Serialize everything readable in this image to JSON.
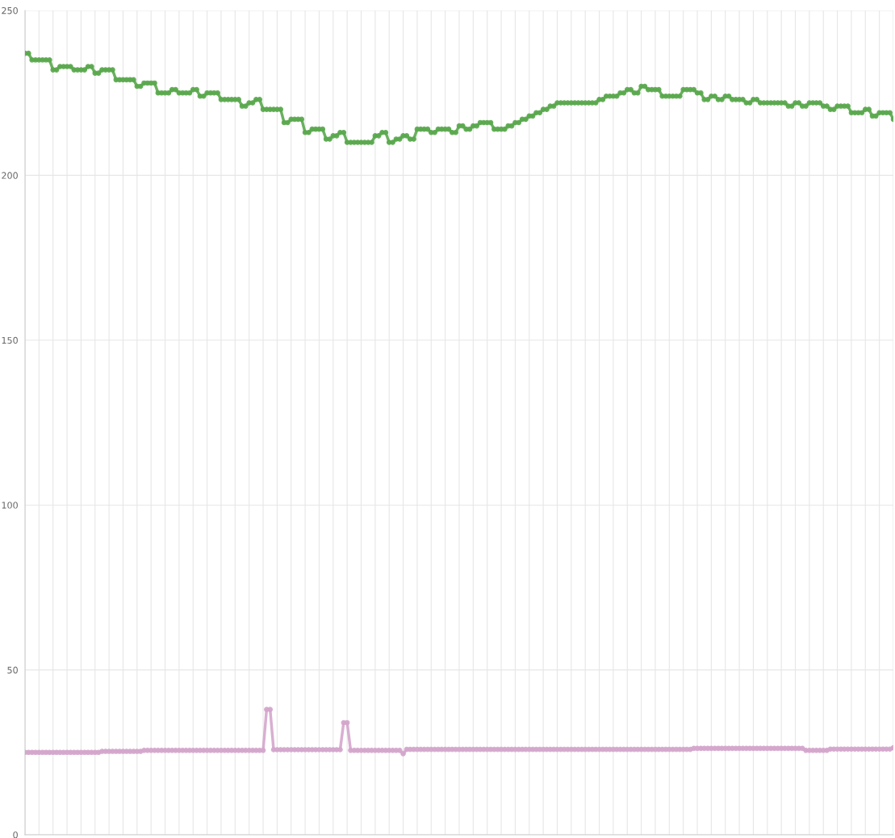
{
  "chart_data": {
    "type": "line",
    "categories": [
      null,
      null,
      null,
      null,
      null,
      null,
      null,
      null,
      null,
      null,
      null,
      null,
      null,
      null,
      null,
      null,
      null,
      null,
      null,
      null,
      null,
      null,
      null,
      null,
      null,
      null,
      null,
      null,
      null,
      null,
      null,
      null,
      null,
      null,
      null,
      null,
      null,
      null,
      null,
      null,
      null,
      null,
      null,
      null,
      null,
      null,
      null,
      null,
      null,
      null,
      null,
      null,
      null,
      null,
      null,
      null,
      null,
      null,
      null,
      null,
      null,
      null,
      null,
      null,
      null,
      null,
      null,
      null,
      null,
      null,
      null,
      null,
      null,
      null,
      null,
      null,
      null,
      null,
      null,
      null,
      null,
      null,
      null,
      null,
      null,
      null,
      null,
      null,
      null,
      null,
      null,
      null,
      null,
      null,
      null,
      null,
      null,
      null,
      null,
      null,
      null,
      null,
      null,
      null,
      null,
      null,
      null,
      null,
      null,
      null,
      null,
      null,
      null,
      null,
      null,
      null,
      null,
      null,
      null,
      null,
      null,
      null,
      null,
      null,
      null,
      null,
      null,
      null,
      null,
      null,
      null,
      null,
      null,
      null,
      null,
      null,
      null,
      null,
      null,
      null,
      null,
      null,
      null,
      null,
      null,
      null,
      null,
      null,
      null,
      null,
      null,
      null,
      null,
      null,
      null,
      null,
      null,
      null,
      null,
      null,
      null,
      null,
      null,
      null,
      null,
      null,
      null,
      null,
      null,
      null,
      null,
      null,
      null,
      null,
      null,
      null,
      null,
      null,
      null,
      null,
      null,
      null,
      null,
      null,
      null,
      null,
      null,
      null,
      null,
      null,
      null,
      null,
      null,
      null,
      null,
      null,
      null,
      null,
      null,
      null,
      null,
      null,
      null,
      null,
      null,
      null,
      null,
      null,
      null,
      null,
      null,
      null,
      null,
      null,
      null,
      null,
      null,
      null,
      null,
      null,
      null,
      null,
      null,
      null,
      null,
      null,
      null,
      null,
      null,
      null,
      null,
      null,
      null,
      null,
      null,
      null,
      null,
      null,
      null,
      null,
      null,
      null,
      null,
      null,
      null,
      null,
      null,
      null,
      null
    ],
    "series": [
      {
        "color": "#5ba84f",
        "values": [
          237,
          237,
          235,
          235,
          235,
          235,
          235,
          235,
          232,
          232,
          233,
          233,
          233,
          233,
          232,
          232,
          232,
          232,
          233,
          233,
          231,
          231,
          232,
          232,
          232,
          232,
          229,
          229,
          229,
          229,
          229,
          229,
          227,
          227,
          228,
          228,
          228,
          228,
          225,
          225,
          225,
          225,
          226,
          226,
          225,
          225,
          225,
          225,
          226,
          226,
          224,
          224,
          225,
          225,
          225,
          225,
          223,
          223,
          223,
          223,
          223,
          223,
          221,
          221,
          222,
          222,
          223,
          223,
          220,
          220,
          220,
          220,
          220,
          220,
          216,
          216,
          217,
          217,
          217,
          217,
          213,
          213,
          214,
          214,
          214,
          214,
          211,
          211,
          212,
          212,
          213,
          213,
          210,
          210,
          210,
          210,
          210,
          210,
          210,
          210,
          212,
          212,
          213,
          213,
          210,
          210,
          211,
          211,
          212,
          212,
          211,
          211,
          214,
          214,
          214,
          214,
          213,
          213,
          214,
          214,
          214,
          214,
          213,
          213,
          215,
          215,
          214,
          214,
          215,
          215,
          216,
          216,
          216,
          216,
          214,
          214,
          214,
          214,
          215,
          215,
          216,
          216,
          217,
          217,
          218,
          218,
          219,
          219,
          220,
          220,
          221,
          221,
          222,
          222,
          222,
          222,
          222,
          222,
          222,
          222,
          222,
          222,
          222,
          222,
          223,
          223,
          224,
          224,
          224,
          224,
          225,
          225,
          226,
          226,
          225,
          225,
          227,
          227,
          226,
          226,
          226,
          226,
          224,
          224,
          224,
          224,
          224,
          224,
          226,
          226,
          226,
          226,
          225,
          225,
          223,
          223,
          224,
          224,
          223,
          223,
          224,
          224,
          223,
          223,
          223,
          223,
          222,
          222,
          223,
          223,
          222,
          222,
          222,
          222,
          222,
          222,
          222,
          222,
          221,
          221,
          222,
          222,
          221,
          221,
          222,
          222,
          222,
          222,
          221,
          221,
          220,
          220,
          221,
          221,
          221,
          221,
          219,
          219,
          219,
          219,
          220,
          220,
          218,
          218,
          219,
          219,
          219,
          219,
          217
        ]
      },
      {
        "color": "#d4a6cc",
        "values": [
          25.0,
          25.0,
          25.0,
          25.0,
          25.0,
          25.0,
          25.0,
          25.0,
          25.0,
          25.0,
          25.0,
          25.0,
          25.0,
          25.0,
          25.0,
          25.0,
          25.0,
          25.0,
          25.0,
          25.0,
          25.0,
          25.0,
          25.3,
          25.3,
          25.3,
          25.3,
          25.3,
          25.3,
          25.3,
          25.3,
          25.3,
          25.3,
          25.3,
          25.3,
          25.6,
          25.6,
          25.6,
          25.6,
          25.6,
          25.6,
          25.6,
          25.6,
          25.6,
          25.6,
          25.6,
          25.6,
          25.6,
          25.6,
          25.6,
          25.6,
          25.6,
          25.6,
          25.6,
          25.6,
          25.6,
          25.6,
          25.6,
          25.6,
          25.6,
          25.6,
          25.6,
          25.6,
          25.6,
          25.6,
          25.6,
          25.6,
          25.6,
          25.6,
          25.6,
          38,
          38,
          25.8,
          25.8,
          25.8,
          25.8,
          25.8,
          25.8,
          25.8,
          25.8,
          25.8,
          25.8,
          25.8,
          25.8,
          25.8,
          25.8,
          25.8,
          25.8,
          25.8,
          25.8,
          25.8,
          25.8,
          34,
          34,
          25.6,
          25.6,
          25.6,
          25.6,
          25.6,
          25.6,
          25.6,
          25.6,
          25.6,
          25.6,
          25.6,
          25.6,
          25.6,
          25.6,
          25.6,
          24.6,
          25.9,
          25.9,
          25.9,
          25.9,
          25.9,
          25.9,
          25.9,
          25.9,
          25.9,
          25.9,
          25.9,
          25.9,
          25.9,
          25.9,
          25.9,
          25.9,
          25.9,
          25.9,
          25.9,
          25.9,
          25.9,
          25.9,
          25.9,
          25.9,
          25.9,
          25.9,
          25.9,
          25.9,
          25.9,
          25.9,
          25.9,
          25.9,
          25.9,
          25.9,
          25.9,
          25.9,
          25.9,
          25.9,
          25.9,
          25.9,
          25.9,
          25.9,
          25.9,
          25.9,
          25.9,
          25.9,
          25.9,
          25.9,
          25.9,
          25.9,
          25.9,
          25.9,
          25.9,
          25.9,
          25.9,
          25.9,
          25.9,
          25.9,
          25.9,
          25.9,
          25.9,
          25.9,
          25.9,
          25.9,
          25.9,
          25.9,
          25.9,
          25.9,
          25.9,
          25.9,
          25.9,
          25.9,
          25.9,
          25.9,
          25.9,
          25.9,
          25.9,
          25.9,
          25.9,
          25.9,
          25.9,
          25.9,
          26.2,
          26.2,
          26.2,
          26.2,
          26.2,
          26.2,
          26.2,
          26.2,
          26.2,
          26.2,
          26.2,
          26.2,
          26.2,
          26.2,
          26.2,
          26.2,
          26.2,
          26.2,
          26.2,
          26.2,
          26.2,
          26.2,
          26.2,
          26.2,
          26.2,
          26.2,
          26.2,
          26.2,
          26.2,
          26.2,
          26.2,
          26.2,
          25.6,
          25.6,
          25.6,
          25.6,
          25.6,
          25.6,
          25.6,
          26.0,
          26.0,
          26.0,
          26.0,
          26.0,
          26.0,
          26.0,
          26.0,
          26.0,
          26.0,
          26.0,
          26.0,
          26.0,
          26.0,
          26.0,
          26.0,
          26.0,
          26.0,
          26.4
        ]
      }
    ],
    "ylim": [
      0,
      250
    ],
    "yticks": [
      0,
      50,
      100,
      150,
      200,
      250
    ],
    "grid": true,
    "marker": "circle",
    "line_style": "solid",
    "tick_labels": "y"
  }
}
